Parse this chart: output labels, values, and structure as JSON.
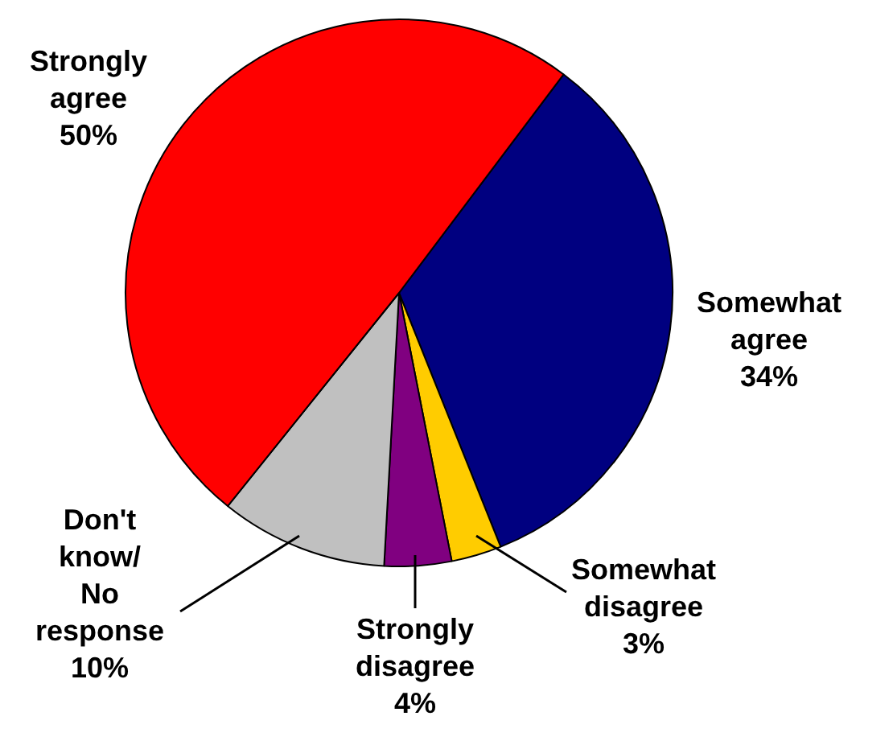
{
  "chart_data": {
    "type": "pie",
    "categories": [
      "Somewhat agree",
      "Somewhat disagree",
      "Strongly disagree",
      "Don't know/ No response",
      "Strongly agree"
    ],
    "values": [
      34,
      3,
      4,
      10,
      50
    ],
    "colors": [
      "#000080",
      "#ffcc00",
      "#800080",
      "#c0c0c0",
      "#ff0000"
    ],
    "value_labels": [
      "34%",
      "3%",
      "4%",
      "10%",
      "50%"
    ],
    "legend": false
  }
}
